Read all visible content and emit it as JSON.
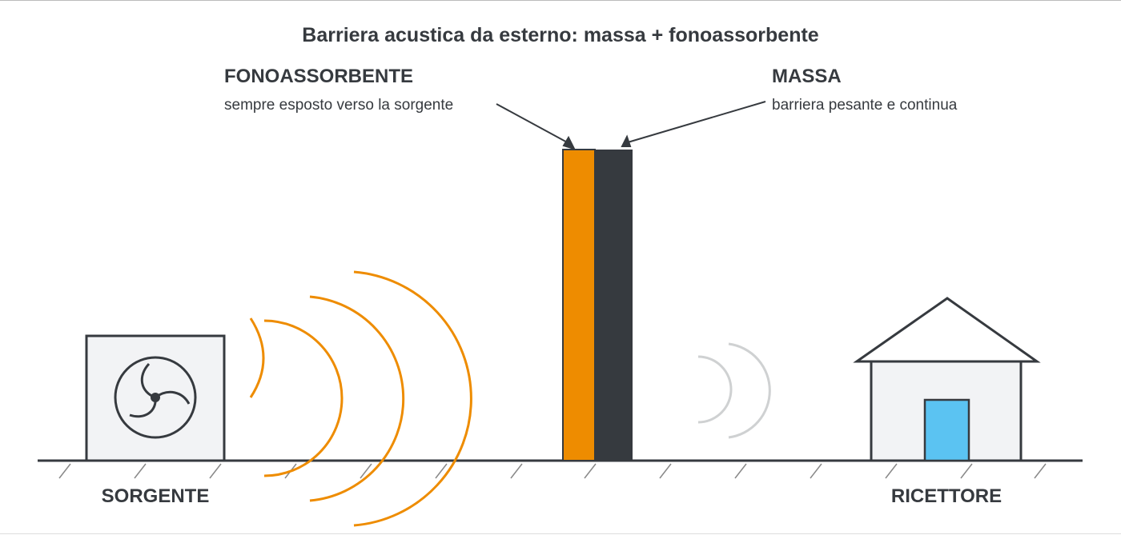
{
  "title": "Barriera acustica da esterno: massa + fonoassorbente",
  "fonoassorbente": {
    "label": "FONOASSORBENTE",
    "description": "sempre esposto verso la sorgente"
  },
  "massa": {
    "label": "MASSA",
    "description": "barriera pesante e continua"
  },
  "source": {
    "label": "SORGENTE"
  },
  "receiver": {
    "label": "RICETTORE"
  }
}
